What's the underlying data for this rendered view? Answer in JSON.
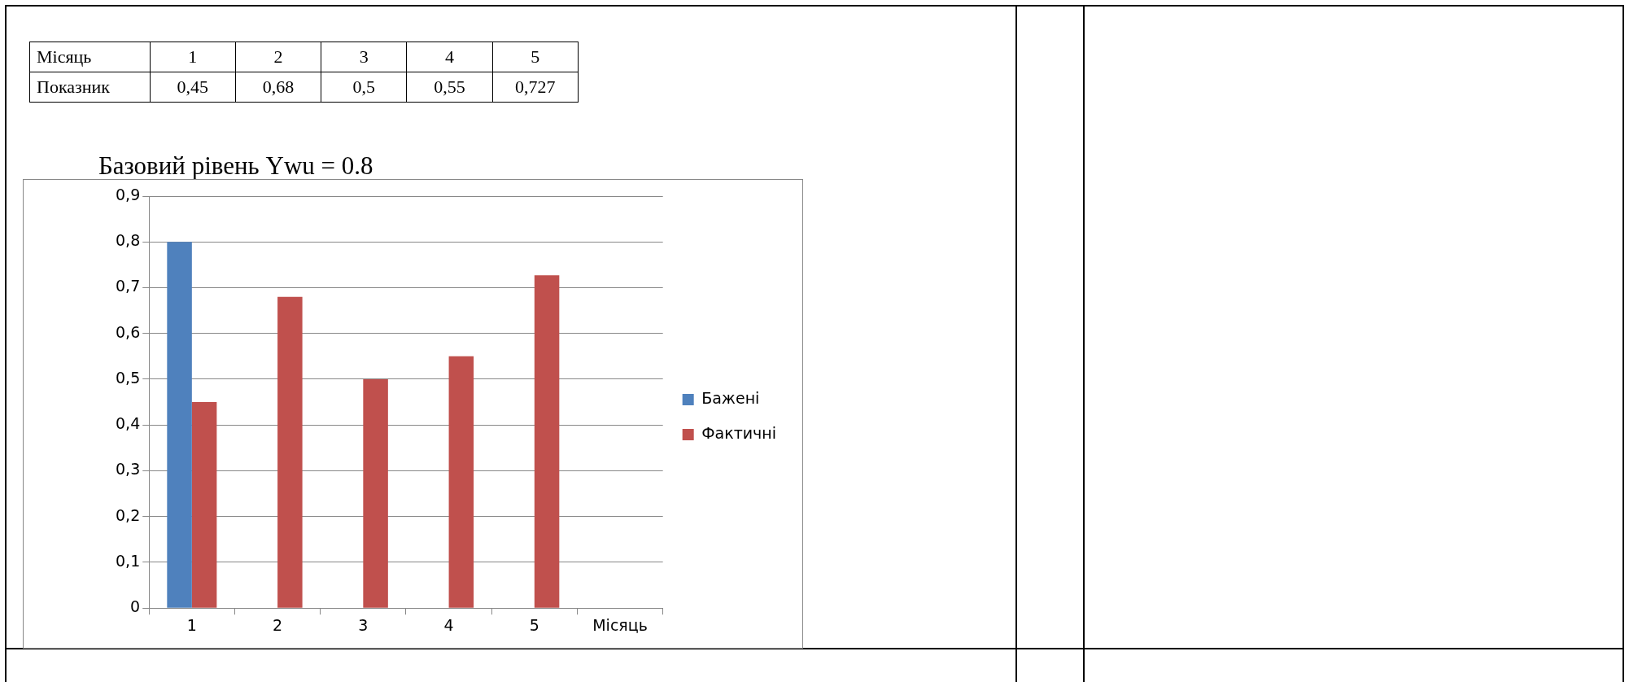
{
  "chart_data": {
    "type": "bar",
    "title": "Базовий рівень Ywu  = 0.8",
    "categories": [
      "1",
      "2",
      "3",
      "4",
      "5",
      "Місяць"
    ],
    "series": [
      {
        "name": "Бажені",
        "color": "#4f81bd",
        "values": [
          0.8,
          null,
          null,
          null,
          null,
          null
        ]
      },
      {
        "name": "Фактичні",
        "color": "#c0504d",
        "values": [
          0.45,
          0.68,
          0.5,
          0.55,
          0.727,
          null
        ],
        "value_labels": [
          "0,45",
          "0,68",
          "0,5",
          "0,55",
          "0,727",
          null
        ]
      }
    ],
    "annotations": [
      "Місяць",
      "Показник"
    ],
    "ylim": [
      0,
      0.9
    ],
    "yticks": [
      {
        "value": 0,
        "label": "0"
      },
      {
        "value": 0.1,
        "label": "0,1"
      },
      {
        "value": 0.2,
        "label": "0,2"
      },
      {
        "value": 0.3,
        "label": "0,3"
      },
      {
        "value": 0.4,
        "label": "0,4"
      },
      {
        "value": 0.5,
        "label": "0,5"
      },
      {
        "value": 0.6,
        "label": "0,6"
      },
      {
        "value": 0.7,
        "label": "0,7"
      },
      {
        "value": 0.8,
        "label": "0,8"
      },
      {
        "value": 0.9,
        "label": "0,9"
      }
    ],
    "grid": "y",
    "legend": "right"
  }
}
